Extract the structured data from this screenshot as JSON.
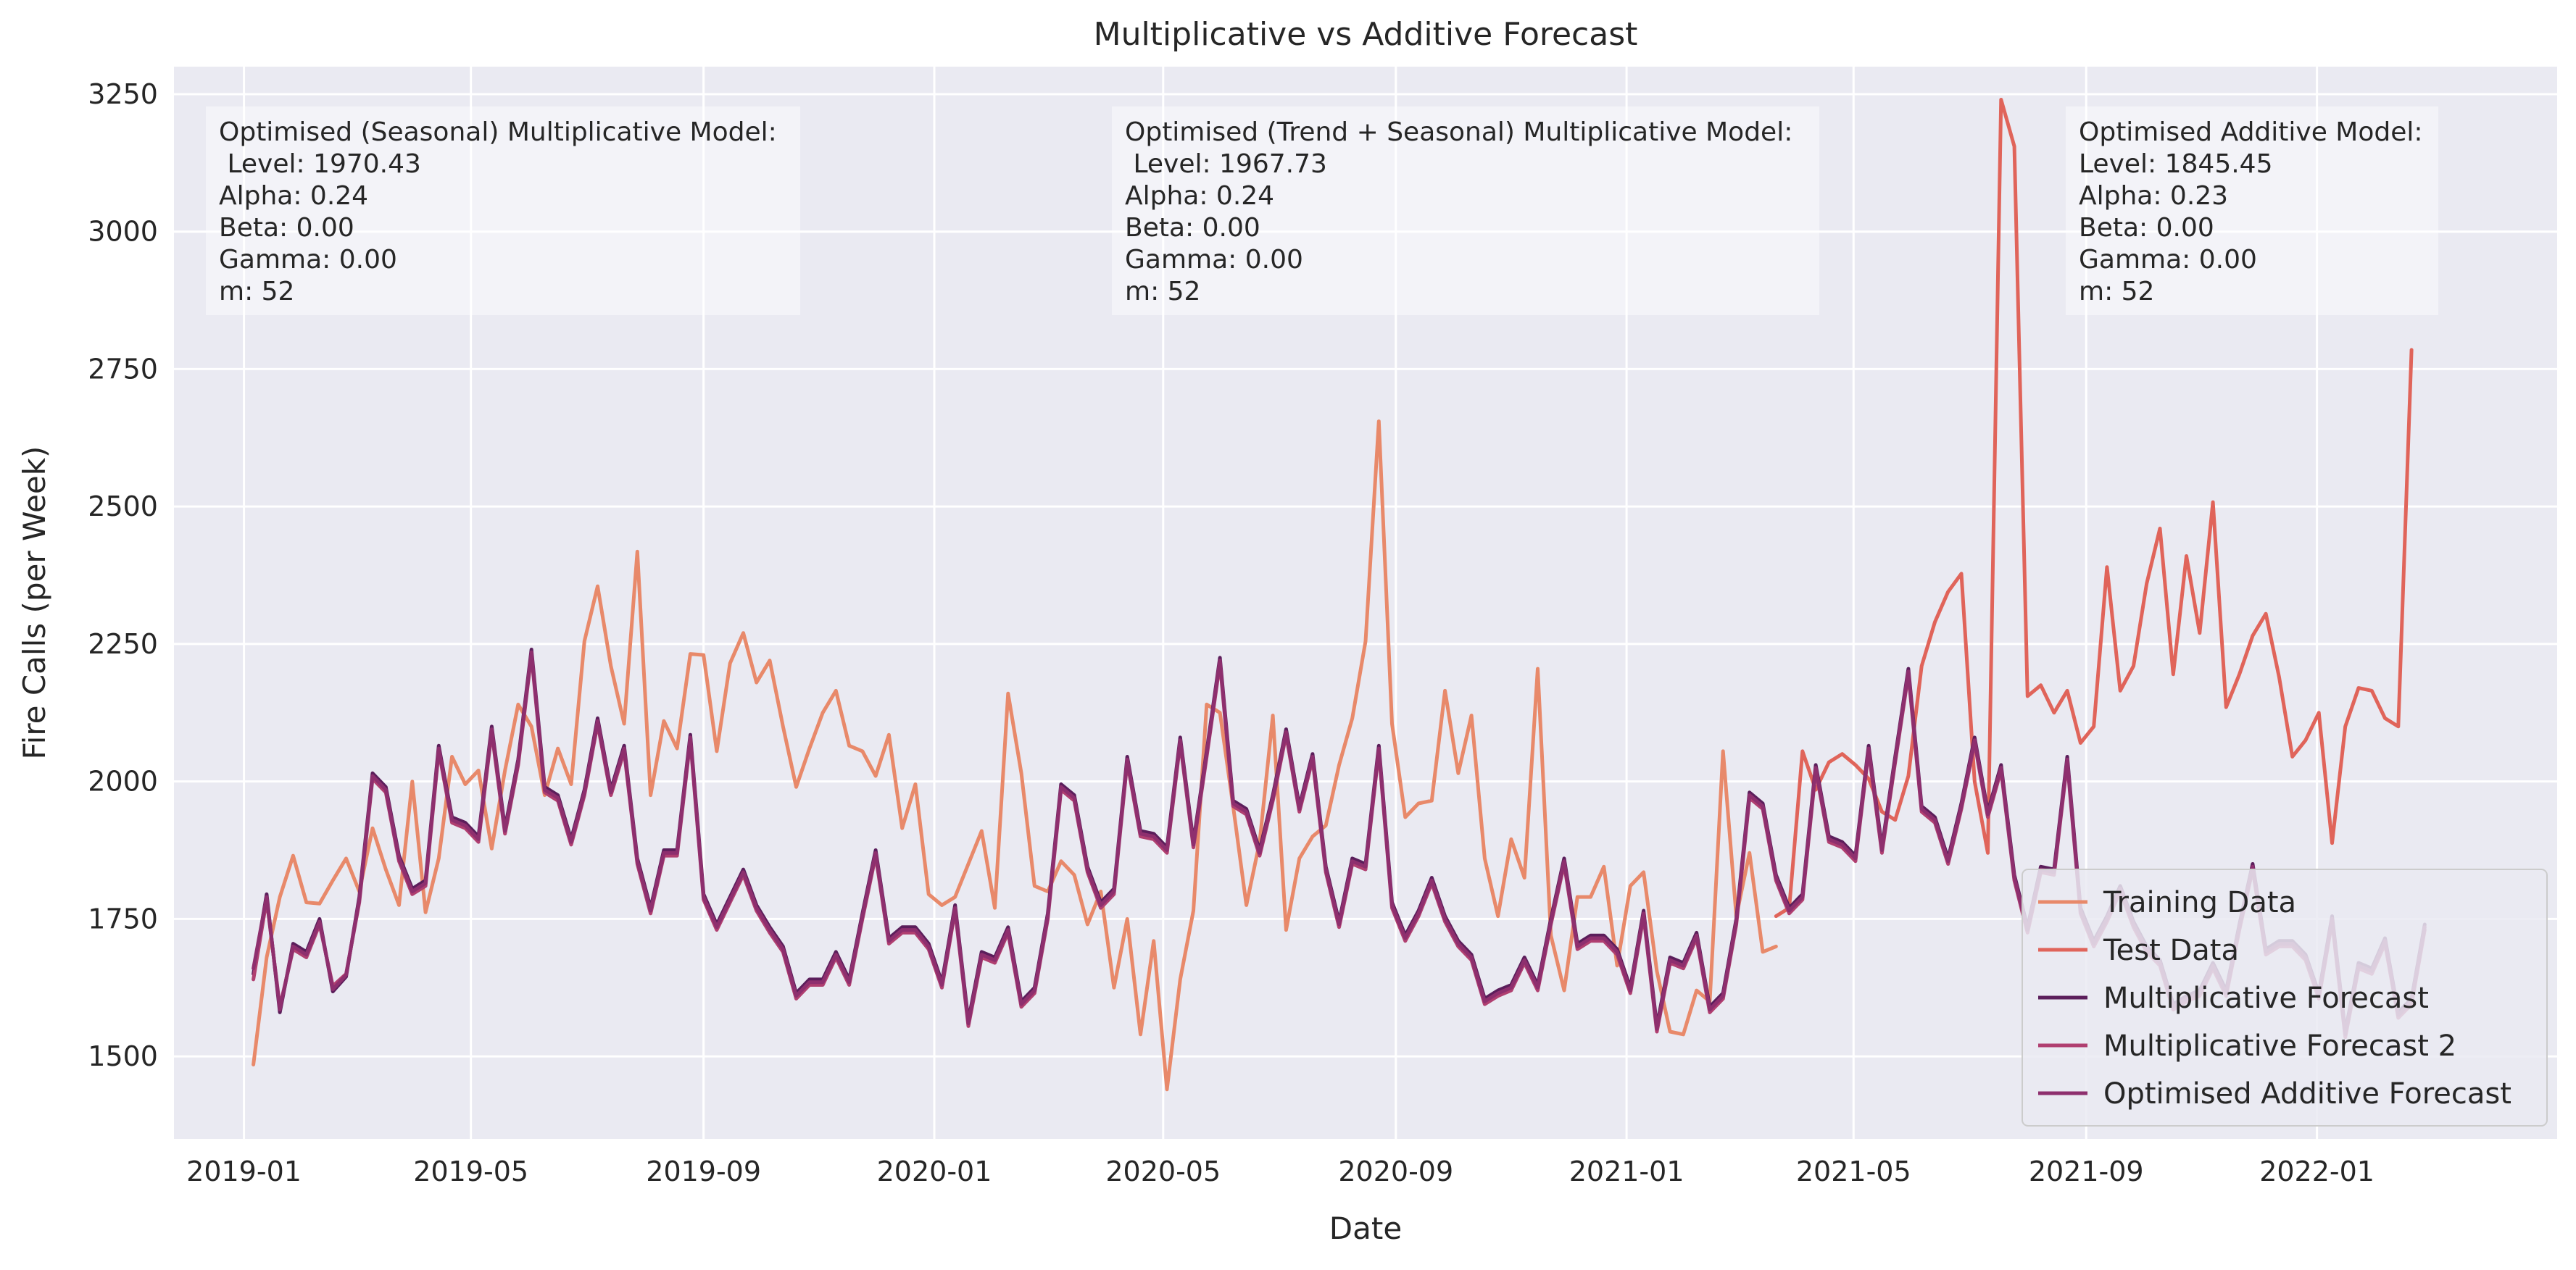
{
  "chart_data": {
    "type": "line",
    "title": "Multiplicative vs Additive Forecast",
    "xlabel": "Date",
    "ylabel": "Fire Calls (per Week)",
    "ylim": [
      1350,
      3300
    ],
    "xlim": [
      "2018-11-25",
      "2022-05-08"
    ],
    "yticks": [
      1500,
      1750,
      2000,
      2250,
      2500,
      2750,
      3000,
      3250
    ],
    "xticks": [
      {
        "date": "2019-01-01",
        "label": "2019-01"
      },
      {
        "date": "2019-05-01",
        "label": "2019-05"
      },
      {
        "date": "2019-09-01",
        "label": "2019-09"
      },
      {
        "date": "2020-01-01",
        "label": "2020-01"
      },
      {
        "date": "2020-05-01",
        "label": "2020-05"
      },
      {
        "date": "2020-09-01",
        "label": "2020-09"
      },
      {
        "date": "2021-01-01",
        "label": "2021-01"
      },
      {
        "date": "2021-05-01",
        "label": "2021-05"
      },
      {
        "date": "2021-09-01",
        "label": "2021-09"
      },
      {
        "date": "2022-01-01",
        "label": "2022-01"
      }
    ],
    "grid": true,
    "background": "#eaeaf2",
    "legend_position": "bottom-right",
    "annotations": [
      {
        "anchor": "left",
        "lines": [
          "Optimised (Seasonal) Multiplicative Model:",
          " Level: 1970.43",
          "Alpha: 0.24",
          "Beta: 0.00",
          "Gamma: 0.00",
          "m: 52"
        ]
      },
      {
        "anchor": "center",
        "lines": [
          "Optimised (Trend + Seasonal) Multiplicative Model:",
          " Level: 1967.73",
          "Alpha: 0.24",
          "Beta: 0.00",
          "Gamma: 0.00",
          "m: 52"
        ]
      },
      {
        "anchor": "right",
        "lines": [
          "Optimised Additive Model:",
          "Level: 1845.45",
          "Alpha: 0.23",
          "Beta: 0.00",
          "Gamma: 0.00",
          "m: 52"
        ]
      }
    ],
    "series": [
      {
        "name": "Training Data",
        "color": "#e8896a",
        "start": "2019-01-06",
        "step_days": 7,
        "values": [
          1485,
          1680,
          1790,
          1865,
          1780,
          1778,
          1820,
          1860,
          1800,
          1915,
          1840,
          1775,
          2000,
          1762,
          1860,
          2045,
          1995,
          2020,
          1878,
          2020,
          2140,
          2100,
          1975,
          2060,
          1995,
          2255,
          2355,
          2210,
          2105,
          2418,
          1975,
          2110,
          2060,
          2232,
          2230,
          2055,
          2215,
          2270,
          2180,
          2220,
          2100,
          1990,
          2060,
          2125,
          2165,
          2065,
          2055,
          2010,
          2085,
          1915,
          1995,
          1795,
          1775,
          1790,
          1850,
          1910,
          1770,
          2160,
          2015,
          1810,
          1800,
          1855,
          1830,
          1740,
          1800,
          1625,
          1750,
          1540,
          1710,
          1440,
          1640,
          1765,
          2140,
          2125,
          1955,
          1775,
          1890,
          2120,
          1730,
          1860,
          1900,
          1920,
          2030,
          2115,
          2255,
          2655,
          2105,
          1935,
          1960,
          1965,
          2165,
          2015,
          2120,
          1860,
          1755,
          1895,
          1825,
          2205,
          1720,
          1620,
          1790,
          1790,
          1845,
          1665,
          1810,
          1835,
          1655,
          1545,
          1540,
          1620,
          1600,
          2055,
          1755,
          1870,
          1690,
          1700
        ]
      },
      {
        "name": "Test Data",
        "color": "#e0645a",
        "start": "2021-03-21",
        "step_days": 7,
        "values": [
          1755,
          1770,
          2055,
          1985,
          2035,
          2050,
          2030,
          2005,
          1945,
          1930,
          2010,
          2210,
          2290,
          2345,
          2378,
          2000,
          1870,
          3240,
          3155,
          2155,
          2175,
          2125,
          2165,
          2070,
          2100,
          2390,
          2165,
          2210,
          2360,
          2460,
          2195,
          2410,
          2270,
          2508,
          2135,
          2195,
          2265,
          2305,
          2190,
          2045,
          2075,
          2125,
          1888,
          2100,
          2170,
          2165,
          2115,
          2100,
          2785
        ]
      },
      {
        "name": "Multiplicative Forecast",
        "color": "#5b1e5b",
        "start": "2019-01-06",
        "step_days": 7,
        "values": [
          1650,
          1795,
          1580,
          1705,
          1690,
          1750,
          1618,
          1645,
          1790,
          2015,
          1990,
          1865,
          1805,
          1820,
          2065,
          1935,
          1925,
          1900,
          2100,
          1915,
          2040,
          2240,
          1990,
          1975,
          1895,
          1985,
          2115,
          1985,
          2065,
          1860,
          1770,
          1875,
          1875,
          2085,
          1795,
          1740,
          1790,
          1840,
          1775,
          1735,
          1700,
          1615,
          1640,
          1640,
          1690,
          1640,
          1760,
          1875,
          1715,
          1735,
          1735,
          1705,
          1635,
          1775,
          1565,
          1690,
          1680,
          1735,
          1600,
          1625,
          1760,
          1995,
          1975,
          1845,
          1780,
          1805,
          2045,
          1910,
          1905,
          1880,
          2080,
          1890,
          2055,
          2225,
          1965,
          1950,
          1875,
          1975,
          2095,
          1955,
          2050,
          1845,
          1745,
          1860,
          1850,
          2065,
          1780,
          1720,
          1765,
          1825,
          1755,
          1710,
          1685,
          1605,
          1620,
          1630,
          1680,
          1630,
          1750,
          1860,
          1705,
          1720,
          1720,
          1695,
          1625,
          1765,
          1555,
          1680,
          1670,
          1725,
          1590,
          1615,
          1750,
          1980,
          1960,
          1830,
          1770,
          1795,
          2030,
          1900,
          1890,
          1865,
          2065,
          1880,
          2045,
          2205,
          1955,
          1935,
          1860,
          1960,
          2080,
          1945,
          2030,
          1830,
          1735,
          1845,
          1840,
          2045,
          1770,
          1710,
          1755,
          1810,
          1745,
          1700,
          1675,
          1595,
          1610,
          1620,
          1670,
          1620,
          1740,
          1850,
          1695,
          1710,
          1710,
          1685,
          1615,
          1755,
          1545,
          1670,
          1660,
          1715,
          1580,
          1605,
          1740
        ]
      },
      {
        "name": "Multiplicative Forecast 2",
        "color": "#b03f70",
        "start": "2019-01-06",
        "step_days": 7,
        "values": [
          1640,
          1785,
          1590,
          1695,
          1680,
          1740,
          1628,
          1650,
          1780,
          2005,
          1980,
          1855,
          1795,
          1810,
          2055,
          1925,
          1915,
          1890,
          2090,
          1905,
          2030,
          2230,
          1980,
          1965,
          1885,
          1975,
          2105,
          1975,
          2055,
          1850,
          1760,
          1865,
          1865,
          2075,
          1785,
          1730,
          1780,
          1830,
          1765,
          1725,
          1690,
          1605,
          1630,
          1630,
          1680,
          1630,
          1750,
          1865,
          1705,
          1725,
          1725,
          1695,
          1625,
          1765,
          1555,
          1680,
          1670,
          1725,
          1590,
          1615,
          1750,
          1985,
          1965,
          1835,
          1770,
          1795,
          2035,
          1900,
          1895,
          1870,
          2070,
          1880,
          2045,
          2215,
          1955,
          1940,
          1865,
          1965,
          2085,
          1945,
          2040,
          1835,
          1735,
          1850,
          1840,
          2055,
          1770,
          1710,
          1755,
          1815,
          1745,
          1700,
          1675,
          1595,
          1610,
          1620,
          1670,
          1620,
          1740,
          1850,
          1695,
          1710,
          1710,
          1685,
          1615,
          1755,
          1545,
          1670,
          1660,
          1715,
          1580,
          1605,
          1740,
          1970,
          1950,
          1820,
          1760,
          1785,
          2020,
          1890,
          1880,
          1855,
          2055,
          1870,
          2035,
          2195,
          1945,
          1925,
          1850,
          1950,
          2070,
          1935,
          2020,
          1820,
          1725,
          1835,
          1830,
          2035,
          1760,
          1700,
          1745,
          1800,
          1735,
          1690,
          1665,
          1585,
          1600,
          1610,
          1660,
          1610,
          1730,
          1840,
          1685,
          1700,
          1700,
          1675,
          1605,
          1745,
          1535,
          1660,
          1650,
          1705,
          1570,
          1595,
          1730
        ]
      },
      {
        "name": "Optimised Additive Forecast",
        "color": "#8e2f6e",
        "start": "2019-01-06",
        "step_days": 7,
        "values": [
          1660,
          1790,
          1585,
          1700,
          1685,
          1745,
          1622,
          1648,
          1785,
          2010,
          1985,
          1860,
          1800,
          1815,
          2060,
          1930,
          1920,
          1895,
          2095,
          1910,
          2035,
          2235,
          1985,
          1970,
          1890,
          1980,
          2110,
          1980,
          2060,
          1855,
          1765,
          1870,
          1870,
          2080,
          1790,
          1735,
          1785,
          1835,
          1770,
          1730,
          1695,
          1610,
          1635,
          1635,
          1685,
          1635,
          1755,
          1870,
          1710,
          1730,
          1730,
          1700,
          1630,
          1770,
          1560,
          1685,
          1675,
          1730,
          1595,
          1620,
          1755,
          1990,
          1970,
          1840,
          1775,
          1800,
          2040,
          1905,
          1900,
          1875,
          2075,
          1885,
          2050,
          2220,
          1960,
          1945,
          1870,
          1970,
          2090,
          1950,
          2045,
          1840,
          1740,
          1855,
          1845,
          2060,
          1775,
          1715,
          1760,
          1820,
          1750,
          1705,
          1680,
          1600,
          1615,
          1625,
          1675,
          1625,
          1745,
          1855,
          1700,
          1715,
          1715,
          1690,
          1620,
          1760,
          1550,
          1675,
          1665,
          1720,
          1585,
          1610,
          1745,
          1975,
          1955,
          1825,
          1765,
          1790,
          2025,
          1895,
          1885,
          1860,
          2060,
          1875,
          2040,
          2200,
          1950,
          1930,
          1855,
          1955,
          2075,
          1940,
          2025,
          1825,
          1730,
          1840,
          1835,
          2040,
          1765,
          1705,
          1750,
          1805,
          1740,
          1695,
          1670,
          1590,
          1605,
          1615,
          1665,
          1615,
          1735,
          1845,
          1690,
          1705,
          1705,
          1680,
          1610,
          1750,
          1540,
          1665,
          1655,
          1710,
          1575,
          1600,
          1735
        ]
      }
    ]
  }
}
